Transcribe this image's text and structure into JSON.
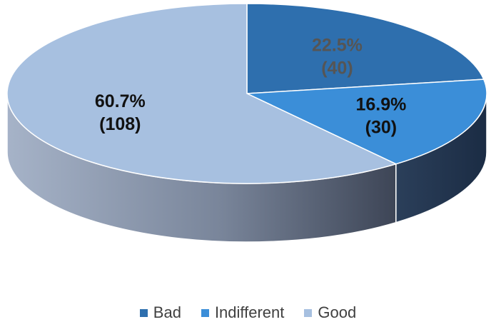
{
  "chart_data": {
    "type": "pie",
    "style": "3d",
    "legend_position": "bottom",
    "slices": [
      {
        "name": "Bad",
        "value": 40,
        "percent": "22.5%",
        "count_label": "(40)",
        "color": "#2e6fae",
        "label_color": "#555555"
      },
      {
        "name": "Indifferent",
        "value": 30,
        "percent": "16.9%",
        "count_label": "(30)",
        "color": "#3b8ed8",
        "label_color": "#111111"
      },
      {
        "name": "Good",
        "value": 108,
        "percent": "60.7%",
        "count_label": "(108)",
        "color": "#a7c0e0",
        "label_color": "#111111"
      }
    ]
  }
}
